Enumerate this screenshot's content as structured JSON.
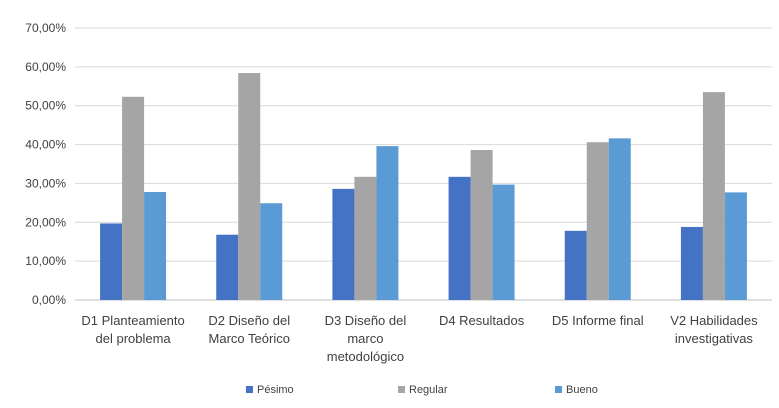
{
  "chart_data": {
    "type": "bar",
    "categories": [
      [
        "D1 Planteamiento",
        "del problema"
      ],
      [
        "D2 Diseño del",
        "Marco Teórico"
      ],
      [
        "D3 Diseño del",
        "marco",
        "metodológico"
      ],
      [
        "D4 Resultados"
      ],
      [
        "D5 Informe final"
      ],
      [
        "V2 Habilidades",
        "investigativas"
      ]
    ],
    "series": [
      {
        "name": "Pésimo",
        "color": "#4472C4",
        "values": [
          19.7,
          16.8,
          28.6,
          31.7,
          17.8,
          18.8
        ]
      },
      {
        "name": "Regular",
        "color": "#A5A5A5",
        "values": [
          52.3,
          58.4,
          31.7,
          38.6,
          40.6,
          53.5
        ]
      },
      {
        "name": "Bueno",
        "color": "#5B9BD5",
        "values": [
          27.8,
          24.9,
          39.6,
          29.7,
          41.6,
          27.7
        ]
      }
    ],
    "ylim": [
      0,
      70
    ],
    "yticks": [
      "0,00%",
      "10,00%",
      "20,00%",
      "30,00%",
      "40,00%",
      "50,00%",
      "60,00%",
      "70,00%"
    ],
    "grid": true,
    "legend": "bottom"
  }
}
